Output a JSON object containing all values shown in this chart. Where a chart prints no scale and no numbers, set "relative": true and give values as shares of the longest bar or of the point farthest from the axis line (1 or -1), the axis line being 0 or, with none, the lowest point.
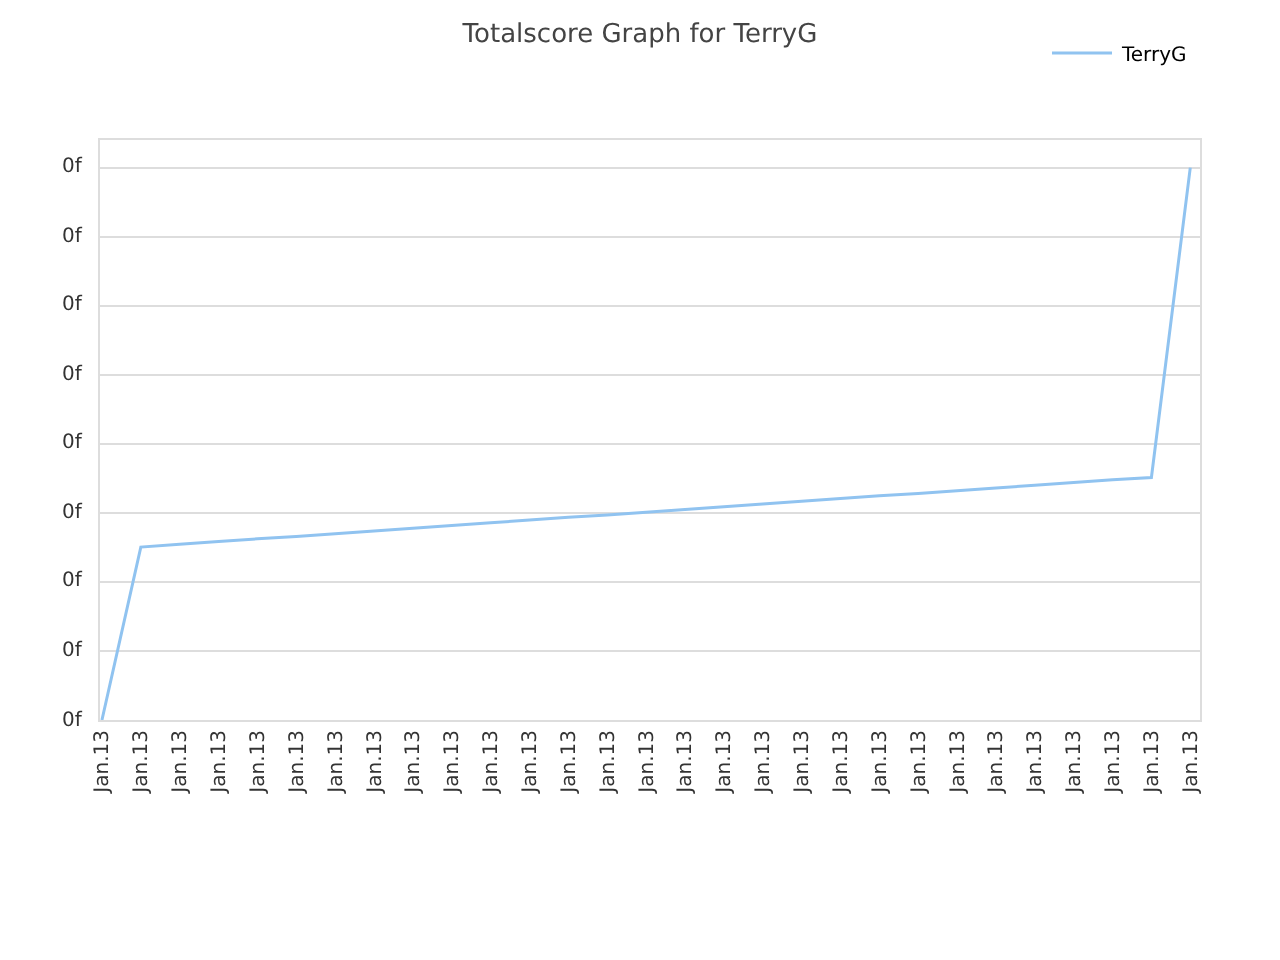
{
  "chart_data": {
    "type": "line",
    "title": "Totalscore Graph for TerryG",
    "relative": true,
    "categories": [
      "Jan.13",
      "Jan.13",
      "Jan.13",
      "Jan.13",
      "Jan.13",
      "Jan.13",
      "Jan.13",
      "Jan.13",
      "Jan.13",
      "Jan.13",
      "Jan.13",
      "Jan.13",
      "Jan.13",
      "Jan.13",
      "Jan.13",
      "Jan.13",
      "Jan.13",
      "Jan.13",
      "Jan.13",
      "Jan.13",
      "Jan.13",
      "Jan.13",
      "Jan.13",
      "Jan.13",
      "Jan.13",
      "Jan.13",
      "Jan.13",
      "Jan.13",
      "Jan.13"
    ],
    "series": [
      {
        "name": "TerryG",
        "color": "#90c3f0",
        "values": [
          0,
          0.313,
          0.318,
          0.323,
          0.328,
          0.332,
          0.337,
          0.342,
          0.347,
          0.352,
          0.357,
          0.362,
          0.367,
          0.371,
          0.376,
          0.381,
          0.386,
          0.391,
          0.396,
          0.401,
          0.406,
          0.41,
          0.415,
          0.42,
          0.425,
          0.43,
          0.435,
          0.439,
          1.0
        ]
      }
    ],
    "annotations": [
      "0f",
      "0f",
      "0f",
      "0f",
      "0f",
      "0f",
      "0f",
      "0f",
      "0f"
    ],
    "grid": "y",
    "legend": "top right",
    "marker": "none",
    "line_style": "solid"
  }
}
